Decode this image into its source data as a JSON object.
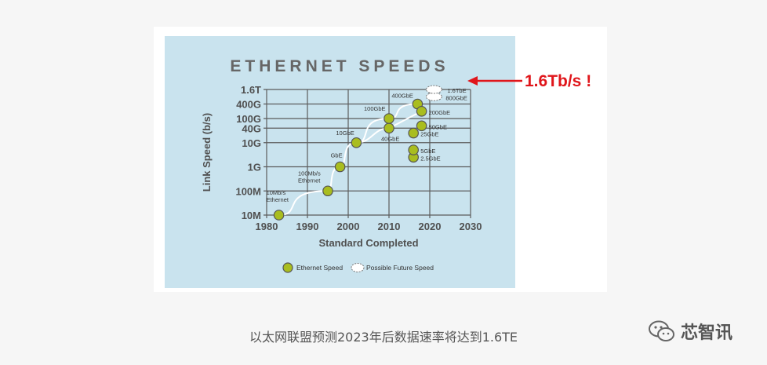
{
  "callout": {
    "text": "1.6Tb/s !"
  },
  "caption": {
    "text": "以太网联盟预测2023年后数据速率将达到1.6TE"
  },
  "watermark": {
    "text": "芯智讯",
    "icon": "wechat-icon"
  },
  "colors": {
    "panel": "#c9e3ee",
    "grid": "#5c5c5c",
    "axis_text": "#505050",
    "point": "#a9bd1f",
    "point_stroke": "#555555",
    "curve": "#ffffff",
    "callout": "#e0161b"
  },
  "chart_data": {
    "type": "scatter",
    "title": "ETHERNET SPEEDS",
    "xlabel": "Standard Completed",
    "ylabel": "Link Speed (b/s)",
    "xlim": [
      1980,
      2030
    ],
    "x_ticks": [
      1980,
      1990,
      2000,
      2010,
      2020,
      2030
    ],
    "y_scale": "log",
    "y_ticks": [
      {
        "label": "10M",
        "value": 10000000
      },
      {
        "label": "100M",
        "value": 100000000
      },
      {
        "label": "1G",
        "value": 1000000000
      },
      {
        "label": "10G",
        "value": 10000000000
      },
      {
        "label": "40G",
        "value": 40000000000
      },
      {
        "label": "100G",
        "value": 100000000000
      },
      {
        "label": "400G",
        "value": 400000000000
      },
      {
        "label": "1.6T",
        "value": 1600000000000
      }
    ],
    "grid": true,
    "legend_position": "bottom",
    "series": [
      {
        "name": "Ethernet Speed",
        "points": [
          {
            "x": 1983,
            "y": 10000000,
            "label": "10Mb/s\nEthernet"
          },
          {
            "x": 1995,
            "y": 100000000,
            "label": "100Mb/s\nEthernet"
          },
          {
            "x": 1998,
            "y": 1000000000,
            "label": "GbE"
          },
          {
            "x": 2002,
            "y": 10000000000,
            "label": "10GbE"
          },
          {
            "x": 2010,
            "y": 40000000000,
            "label": "40GbE"
          },
          {
            "x": 2010,
            "y": 100000000000,
            "label": "100GbE"
          },
          {
            "x": 2016,
            "y": 2500000000,
            "label": "2.5GbE"
          },
          {
            "x": 2016,
            "y": 5000000000,
            "label": "5GbE"
          },
          {
            "x": 2016,
            "y": 25000000000,
            "label": "25GbE"
          },
          {
            "x": 2017,
            "y": 400000000000,
            "label": "400GbE"
          },
          {
            "x": 2018,
            "y": 50000000000,
            "label": "50GbE"
          },
          {
            "x": 2018,
            "y": 200000000000,
            "label": "200GbE"
          }
        ]
      },
      {
        "name": "Possible Future Speed",
        "points": [
          {
            "x": 2022,
            "y": 800000000000,
            "label": "800GbE"
          },
          {
            "x": 2022,
            "y": 1600000000000,
            "label": "1.6TbE"
          }
        ]
      }
    ]
  }
}
